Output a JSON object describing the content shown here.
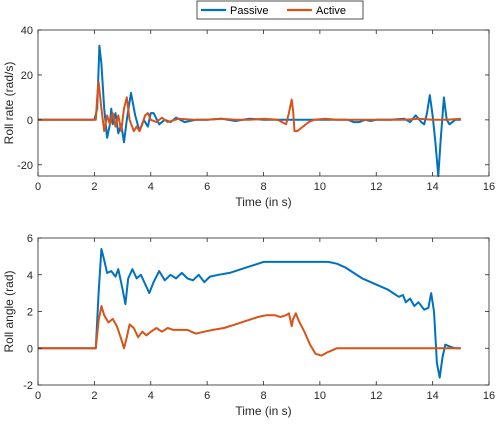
{
  "legend": {
    "placement": "top-center",
    "entries": [
      {
        "label": "Passive",
        "color": "#0072BD"
      },
      {
        "label": "Active",
        "color": "#D95319"
      }
    ]
  },
  "chart_data": [
    {
      "type": "line",
      "xlabel": "Time (in s)",
      "ylabel": "Roll rate (rad/s)",
      "xlim": [
        0,
        16
      ],
      "ylim": [
        -25,
        40
      ],
      "xticks": [
        0,
        2,
        4,
        6,
        8,
        10,
        12,
        14,
        16
      ],
      "yticks": [
        -20,
        0,
        20,
        40
      ],
      "grid": false,
      "series": [
        {
          "name": "Passive",
          "color": "#0072BD",
          "points": [
            [
              0,
              0
            ],
            [
              2.0,
              0
            ],
            [
              2.1,
              5
            ],
            [
              2.18,
              33
            ],
            [
              2.25,
              25
            ],
            [
              2.35,
              5
            ],
            [
              2.45,
              -8
            ],
            [
              2.55,
              -2
            ],
            [
              2.6,
              5
            ],
            [
              2.65,
              -2
            ],
            [
              2.75,
              3
            ],
            [
              2.85,
              -6
            ],
            [
              2.95,
              -2
            ],
            [
              3.05,
              -10
            ],
            [
              3.15,
              0
            ],
            [
              3.3,
              12
            ],
            [
              3.45,
              2
            ],
            [
              3.6,
              -5
            ],
            [
              3.75,
              0
            ],
            [
              3.9,
              -3
            ],
            [
              4.0,
              3
            ],
            [
              4.1,
              3
            ],
            [
              4.3,
              -2
            ],
            [
              4.5,
              0
            ],
            [
              4.7,
              -1
            ],
            [
              4.9,
              1
            ],
            [
              5.2,
              -1
            ],
            [
              5.6,
              0
            ],
            [
              6.0,
              0
            ],
            [
              6.5,
              0.5
            ],
            [
              7.0,
              -0.5
            ],
            [
              7.5,
              0.5
            ],
            [
              8.0,
              0
            ],
            [
              8.5,
              0
            ],
            [
              9.0,
              0
            ],
            [
              9.5,
              0
            ],
            [
              10.0,
              0
            ],
            [
              10.5,
              0
            ],
            [
              11.0,
              0
            ],
            [
              11.2,
              -1
            ],
            [
              11.4,
              -1
            ],
            [
              11.6,
              0
            ],
            [
              11.8,
              -0.5
            ],
            [
              12.0,
              0
            ],
            [
              12.5,
              0
            ],
            [
              13.0,
              0.5
            ],
            [
              13.2,
              -1
            ],
            [
              13.4,
              2
            ],
            [
              13.6,
              -1
            ],
            [
              13.7,
              -2
            ],
            [
              13.8,
              3
            ],
            [
              13.9,
              11
            ],
            [
              14.0,
              2
            ],
            [
              14.1,
              -10
            ],
            [
              14.2,
              -25
            ],
            [
              14.28,
              -10
            ],
            [
              14.4,
              10
            ],
            [
              14.5,
              0
            ],
            [
              14.6,
              -2
            ],
            [
              14.8,
              0
            ],
            [
              15.0,
              0
            ]
          ]
        },
        {
          "name": "Active",
          "color": "#D95319",
          "points": [
            [
              0,
              0
            ],
            [
              2.05,
              0
            ],
            [
              2.1,
              10
            ],
            [
              2.15,
              17
            ],
            [
              2.25,
              5
            ],
            [
              2.35,
              -5
            ],
            [
              2.45,
              2
            ],
            [
              2.55,
              -2
            ],
            [
              2.65,
              3
            ],
            [
              2.75,
              -3
            ],
            [
              2.85,
              2
            ],
            [
              2.95,
              -5
            ],
            [
              3.05,
              5
            ],
            [
              3.15,
              10
            ],
            [
              3.25,
              0
            ],
            [
              3.4,
              -5
            ],
            [
              3.5,
              -3
            ],
            [
              3.6,
              -5
            ],
            [
              3.7,
              -2
            ],
            [
              3.8,
              2
            ],
            [
              3.9,
              3
            ],
            [
              4.0,
              0
            ],
            [
              4.2,
              -1
            ],
            [
              4.4,
              1
            ],
            [
              4.6,
              -1
            ],
            [
              5.0,
              0.5
            ],
            [
              5.5,
              0
            ],
            [
              6.0,
              0
            ],
            [
              6.5,
              0.5
            ],
            [
              7.0,
              0
            ],
            [
              7.5,
              0
            ],
            [
              8.0,
              0.5
            ],
            [
              8.5,
              0
            ],
            [
              8.8,
              -2
            ],
            [
              8.9,
              3
            ],
            [
              9.0,
              9
            ],
            [
              9.05,
              4
            ],
            [
              9.1,
              -5
            ],
            [
              9.2,
              -5
            ],
            [
              9.4,
              -3
            ],
            [
              9.6,
              -1
            ],
            [
              9.8,
              0
            ],
            [
              10.2,
              0.5
            ],
            [
              10.6,
              0
            ],
            [
              11.0,
              0
            ],
            [
              11.5,
              0
            ],
            [
              12.0,
              0
            ],
            [
              12.5,
              0
            ],
            [
              13.0,
              0
            ],
            [
              13.5,
              0.5
            ],
            [
              14.0,
              0
            ],
            [
              14.5,
              0
            ],
            [
              15.0,
              0.5
            ]
          ]
        }
      ]
    },
    {
      "type": "line",
      "xlabel": "Time (in s)",
      "ylabel": "Roll angle (rad)",
      "xlim": [
        0,
        16
      ],
      "ylim": [
        -2,
        6
      ],
      "xticks": [
        0,
        2,
        4,
        6,
        8,
        10,
        12,
        14,
        16
      ],
      "yticks": [
        -2,
        0,
        2,
        4,
        6
      ],
      "grid": false,
      "series": [
        {
          "name": "Passive",
          "color": "#0072BD",
          "points": [
            [
              0,
              0
            ],
            [
              2.05,
              0
            ],
            [
              2.15,
              3
            ],
            [
              2.25,
              5.4
            ],
            [
              2.35,
              4.8
            ],
            [
              2.45,
              4.1
            ],
            [
              2.6,
              4.2
            ],
            [
              2.75,
              3.9
            ],
            [
              2.85,
              4.3
            ],
            [
              3.0,
              3.2
            ],
            [
              3.1,
              2.4
            ],
            [
              3.2,
              3.8
            ],
            [
              3.35,
              4.3
            ],
            [
              3.5,
              3.8
            ],
            [
              3.65,
              4.0
            ],
            [
              3.8,
              3.5
            ],
            [
              3.95,
              3.0
            ],
            [
              4.1,
              3.6
            ],
            [
              4.3,
              4.2
            ],
            [
              4.5,
              3.7
            ],
            [
              4.7,
              4.0
            ],
            [
              4.9,
              3.8
            ],
            [
              5.1,
              4.1
            ],
            [
              5.3,
              3.8
            ],
            [
              5.5,
              3.7
            ],
            [
              5.7,
              4.0
            ],
            [
              5.9,
              3.6
            ],
            [
              6.1,
              3.9
            ],
            [
              6.4,
              4.0
            ],
            [
              6.8,
              4.1
            ],
            [
              7.2,
              4.3
            ],
            [
              7.6,
              4.5
            ],
            [
              8.0,
              4.7
            ],
            [
              8.5,
              4.7
            ],
            [
              9.0,
              4.7
            ],
            [
              9.5,
              4.7
            ],
            [
              10.0,
              4.7
            ],
            [
              10.3,
              4.7
            ],
            [
              10.6,
              4.6
            ],
            [
              10.9,
              4.4
            ],
            [
              11.2,
              4.1
            ],
            [
              11.5,
              3.8
            ],
            [
              11.8,
              3.6
            ],
            [
              12.1,
              3.4
            ],
            [
              12.4,
              3.2
            ],
            [
              12.6,
              3.0
            ],
            [
              12.8,
              2.8
            ],
            [
              12.95,
              2.9
            ],
            [
              13.05,
              2.5
            ],
            [
              13.2,
              2.7
            ],
            [
              13.35,
              2.3
            ],
            [
              13.5,
              2.5
            ],
            [
              13.7,
              2.1
            ],
            [
              13.85,
              2.2
            ],
            [
              13.95,
              3.0
            ],
            [
              14.05,
              2.0
            ],
            [
              14.15,
              -0.8
            ],
            [
              14.25,
              -1.6
            ],
            [
              14.35,
              -0.5
            ],
            [
              14.45,
              0.2
            ],
            [
              14.6,
              0.1
            ],
            [
              14.8,
              0.0
            ],
            [
              15.0,
              0.0
            ]
          ]
        },
        {
          "name": "Active",
          "color": "#D95319",
          "points": [
            [
              0,
              0
            ],
            [
              2.05,
              0
            ],
            [
              2.15,
              1.5
            ],
            [
              2.25,
              2.3
            ],
            [
              2.35,
              1.8
            ],
            [
              2.5,
              1.4
            ],
            [
              2.65,
              1.6
            ],
            [
              2.8,
              1.2
            ],
            [
              2.95,
              0.5
            ],
            [
              3.05,
              0.0
            ],
            [
              3.15,
              0.6
            ],
            [
              3.25,
              1.3
            ],
            [
              3.4,
              1.1
            ],
            [
              3.55,
              0.6
            ],
            [
              3.7,
              0.9
            ],
            [
              3.85,
              0.7
            ],
            [
              4.0,
              0.9
            ],
            [
              4.2,
              1.1
            ],
            [
              4.4,
              0.9
            ],
            [
              4.6,
              1.1
            ],
            [
              4.8,
              1.0
            ],
            [
              5.0,
              1.0
            ],
            [
              5.3,
              1.0
            ],
            [
              5.6,
              0.8
            ],
            [
              5.9,
              0.9
            ],
            [
              6.2,
              1.0
            ],
            [
              6.6,
              1.1
            ],
            [
              7.0,
              1.3
            ],
            [
              7.4,
              1.5
            ],
            [
              7.8,
              1.7
            ],
            [
              8.1,
              1.8
            ],
            [
              8.4,
              1.8
            ],
            [
              8.6,
              1.7
            ],
            [
              8.8,
              1.8
            ],
            [
              8.9,
              1.9
            ],
            [
              9.0,
              1.2
            ],
            [
              9.05,
              1.6
            ],
            [
              9.15,
              1.9
            ],
            [
              9.25,
              1.5
            ],
            [
              9.45,
              0.9
            ],
            [
              9.65,
              0.2
            ],
            [
              9.85,
              -0.3
            ],
            [
              10.05,
              -0.4
            ],
            [
              10.3,
              -0.2
            ],
            [
              10.6,
              0.0
            ],
            [
              11.0,
              0.0
            ],
            [
              12.0,
              0.0
            ],
            [
              13.0,
              0.0
            ],
            [
              14.0,
              0.0
            ],
            [
              15.0,
              0.0
            ]
          ]
        }
      ]
    }
  ]
}
